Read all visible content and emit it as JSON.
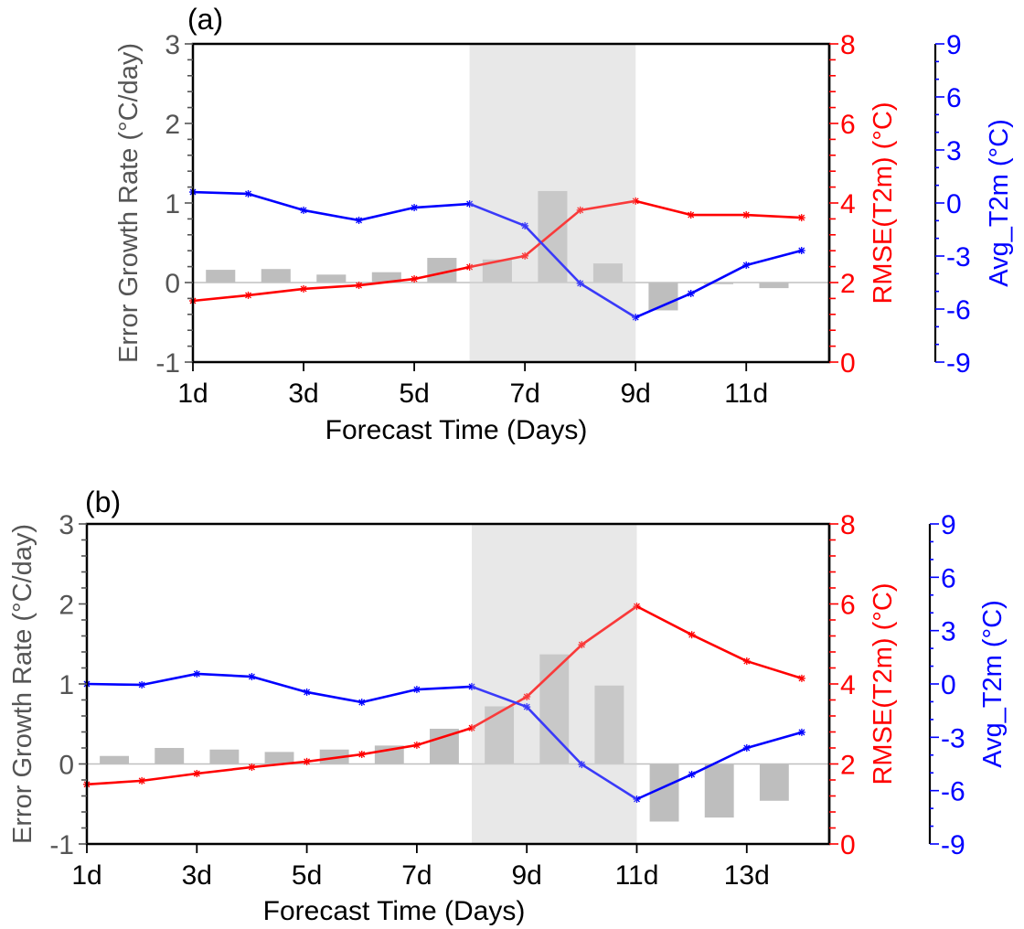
{
  "chart_data": [
    {
      "panel_label": "(a)",
      "type": "bar+line",
      "xlabel": "Forecast Time (Days)",
      "x_tick_labels": [
        "1d",
        "3d",
        "5d",
        "7d",
        "9d",
        "11d"
      ],
      "x_ticks": [
        1,
        3,
        5,
        7,
        9,
        11
      ],
      "xlim": [
        1,
        12.5
      ],
      "shaded_region": [
        6,
        9
      ],
      "left_axis": {
        "label": "Error Growth Rate (°C/day)",
        "ylim": [
          -1,
          3
        ],
        "ticks": [
          -1,
          0,
          1,
          2,
          3
        ],
        "color": "#555555"
      },
      "right_axis_1": {
        "label": "RMSE(T2m) (°C)",
        "ylim": [
          0,
          8
        ],
        "ticks": [
          0,
          2,
          4,
          6,
          8
        ],
        "color": "#ff0000"
      },
      "right_axis_2": {
        "label": "Avg_T2m (°C)",
        "ylim": [
          -9,
          9
        ],
        "ticks": [
          -9,
          -6,
          -3,
          0,
          3,
          6,
          9
        ],
        "color": "#0000ff"
      },
      "bars": {
        "name": "Error Growth Rate",
        "axis": "left",
        "color": "#bebebe",
        "x": [
          1.5,
          2.5,
          3.5,
          4.5,
          5.5,
          6.5,
          7.5,
          8.5,
          9.5,
          10.5,
          11.5
        ],
        "values": [
          0.16,
          0.17,
          0.1,
          0.13,
          0.31,
          0.29,
          1.15,
          0.24,
          -0.35,
          -0.02,
          -0.07
        ]
      },
      "series": [
        {
          "name": "RMSE(T2m)",
          "axis": "right_1",
          "color": "#ff0000",
          "x": [
            1,
            2,
            3,
            4,
            5,
            6,
            7,
            8,
            9,
            10,
            11,
            12
          ],
          "values": [
            1.54,
            1.68,
            1.84,
            1.93,
            2.09,
            2.39,
            2.67,
            3.82,
            4.05,
            3.7,
            3.7,
            3.63
          ]
        },
        {
          "name": "Avg_T2m",
          "axis": "right_2",
          "color": "#0000ff",
          "x": [
            1,
            2,
            3,
            4,
            5,
            6,
            7,
            8,
            9,
            10,
            11,
            12
          ],
          "values": [
            0.62,
            0.52,
            -0.41,
            -0.98,
            -0.26,
            -0.05,
            -1.29,
            -4.55,
            -6.47,
            -5.12,
            -3.52,
            -2.69
          ]
        }
      ]
    },
    {
      "panel_label": "(b)",
      "type": "bar+line",
      "xlabel": "Forecast Time (Days)",
      "x_tick_labels": [
        "1d",
        "3d",
        "5d",
        "7d",
        "9d",
        "11d",
        "13d"
      ],
      "x_ticks": [
        1,
        3,
        5,
        7,
        9,
        11,
        13
      ],
      "xlim": [
        1,
        14.5
      ],
      "shaded_region": [
        8,
        11
      ],
      "left_axis": {
        "label": "Error Growth Rate (°C/day)",
        "ylim": [
          -1,
          3
        ],
        "ticks": [
          -1,
          0,
          1,
          2,
          3
        ],
        "color": "#555555"
      },
      "right_axis_1": {
        "label": "RMSE(T2m) (°C)",
        "ylim": [
          0,
          8
        ],
        "ticks": [
          0,
          2,
          4,
          6,
          8
        ],
        "color": "#ff0000"
      },
      "right_axis_2": {
        "label": "Avg_T2m (°C)",
        "ylim": [
          -9,
          9
        ],
        "ticks": [
          -9,
          -6,
          -3,
          0,
          3,
          6,
          9
        ],
        "color": "#0000ff"
      },
      "bars": {
        "name": "Error Growth Rate",
        "axis": "left",
        "color": "#bebebe",
        "x": [
          1.5,
          2.5,
          3.5,
          4.5,
          5.5,
          6.5,
          7.5,
          8.5,
          9.5,
          10.5,
          11.5,
          12.5,
          13.5
        ],
        "values": [
          0.1,
          0.2,
          0.18,
          0.15,
          0.18,
          0.23,
          0.44,
          0.72,
          1.37,
          0.98,
          -0.72,
          -0.67,
          -0.46
        ]
      },
      "series": [
        {
          "name": "RMSE(T2m)",
          "axis": "right_1",
          "color": "#ff0000",
          "x": [
            1,
            2,
            3,
            4,
            5,
            6,
            7,
            8,
            9,
            10,
            11,
            12,
            13,
            14
          ],
          "values": [
            1.49,
            1.58,
            1.76,
            1.92,
            2.06,
            2.24,
            2.47,
            2.9,
            3.68,
            4.98,
            5.94,
            5.23,
            4.57,
            4.14
          ]
        },
        {
          "name": "Avg_T2m",
          "axis": "right_2",
          "color": "#0000ff",
          "x": [
            1,
            2,
            3,
            4,
            5,
            6,
            7,
            8,
            9,
            10,
            11,
            12,
            13,
            14
          ],
          "values": [
            0.0,
            -0.05,
            0.57,
            0.41,
            -0.46,
            -1.03,
            -0.31,
            -0.15,
            -1.29,
            -4.53,
            -6.48,
            -5.09,
            -3.6,
            -2.72
          ]
        }
      ]
    }
  ]
}
